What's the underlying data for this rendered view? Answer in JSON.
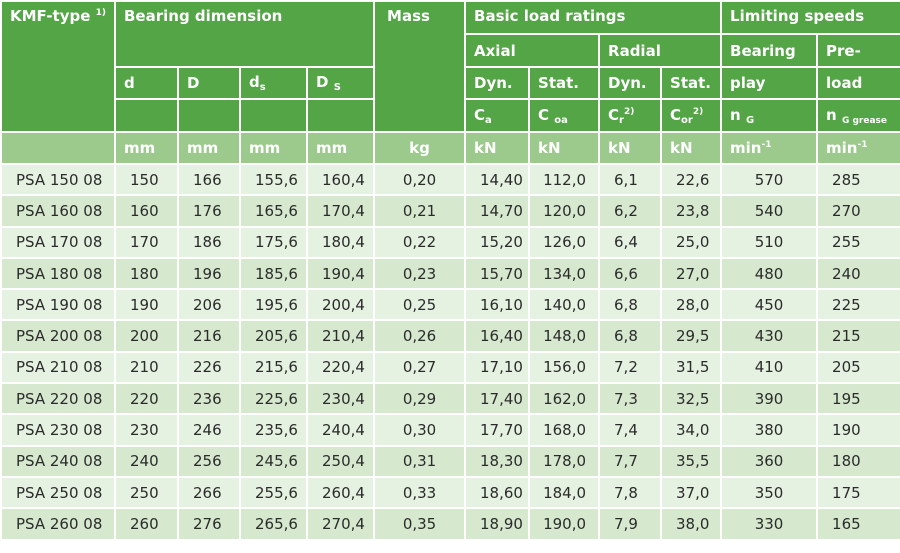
{
  "header": {
    "type_label": "KMF-type",
    "type_note": "1)",
    "bearing_dimension": "Bearing dimension",
    "mass": "Mass",
    "basic_load_ratings": "Basic load ratings",
    "limiting_speeds": "Limiting speeds",
    "axial": "Axial",
    "radial": "Radial",
    "bearing": "Bearing",
    "play": "play",
    "pre": "Pre-",
    "load": "load",
    "d": "d",
    "D": "D",
    "ds_main": "d",
    "ds_sub": "s",
    "DS_main": "D",
    "DS_sub": "S",
    "dyn1": "Dyn.",
    "stat1": "Stat.",
    "dyn2": "Dyn.",
    "stat2": "Stat.",
    "ca_main": "C",
    "ca_sub": "a",
    "coa_main": "C",
    "coa_sub": "oa",
    "cr_main": "C",
    "cr_sub": "r",
    "cr_note": "2)",
    "cor_main": "C",
    "cor_sub": "or",
    "cor_note": "2)",
    "ng_main": "n",
    "ng_sub": "G",
    "ngg_main": "n",
    "ngg_sub": "G grease",
    "units": {
      "d": "mm",
      "D": "mm",
      "ds": "mm",
      "DS": "mm",
      "mass": "kg",
      "ca": "kN",
      "coa": "kN",
      "cr": "kN",
      "cor": "kN",
      "speed1": "min",
      "speed1_exp": "-1",
      "speed2": "min",
      "speed2_exp": "-1"
    }
  },
  "rows": [
    {
      "type": "PSA 150 08",
      "d": "150",
      "D": "166",
      "ds": "155,6",
      "DS": "160,4",
      "mass": "0,20",
      "ca": "14,40",
      "coa": "112,0",
      "cr": "6,1",
      "cor": "22,6",
      "ng": "570",
      "ngg": "285"
    },
    {
      "type": "PSA 160 08",
      "d": "160",
      "D": "176",
      "ds": "165,6",
      "DS": "170,4",
      "mass": "0,21",
      "ca": "14,70",
      "coa": "120,0",
      "cr": "6,2",
      "cor": "23,8",
      "ng": "540",
      "ngg": "270"
    },
    {
      "type": "PSA 170 08",
      "d": "170",
      "D": "186",
      "ds": "175,6",
      "DS": "180,4",
      "mass": "0,22",
      "ca": "15,20",
      "coa": "126,0",
      "cr": "6,4",
      "cor": "25,0",
      "ng": "510",
      "ngg": "255"
    },
    {
      "type": "PSA 180 08",
      "d": "180",
      "D": "196",
      "ds": "185,6",
      "DS": "190,4",
      "mass": "0,23",
      "ca": "15,70",
      "coa": "134,0",
      "cr": "6,6",
      "cor": "27,0",
      "ng": "480",
      "ngg": "240"
    },
    {
      "type": "PSA 190 08",
      "d": "190",
      "D": "206",
      "ds": "195,6",
      "DS": "200,4",
      "mass": "0,25",
      "ca": "16,10",
      "coa": "140,0",
      "cr": "6,8",
      "cor": "28,0",
      "ng": "450",
      "ngg": "225"
    },
    {
      "type": "PSA 200 08",
      "d": "200",
      "D": "216",
      "ds": "205,6",
      "DS": "210,4",
      "mass": "0,26",
      "ca": "16,40",
      "coa": "148,0",
      "cr": "6,8",
      "cor": "29,5",
      "ng": "430",
      "ngg": "215"
    },
    {
      "type": "PSA 210 08",
      "d": "210",
      "D": "226",
      "ds": "215,6",
      "DS": "220,4",
      "mass": "0,27",
      "ca": "17,10",
      "coa": "156,0",
      "cr": "7,2",
      "cor": "31,5",
      "ng": "410",
      "ngg": "205"
    },
    {
      "type": "PSA 220 08",
      "d": "220",
      "D": "236",
      "ds": "225,6",
      "DS": "230,4",
      "mass": "0,29",
      "ca": "17,40",
      "coa": "162,0",
      "cr": "7,3",
      "cor": "32,5",
      "ng": "390",
      "ngg": "195"
    },
    {
      "type": "PSA 230 08",
      "d": "230",
      "D": "246",
      "ds": "235,6",
      "DS": "240,4",
      "mass": "0,30",
      "ca": "17,70",
      "coa": "168,0",
      "cr": "7,4",
      "cor": "34,0",
      "ng": "380",
      "ngg": "190"
    },
    {
      "type": "PSA 240 08",
      "d": "240",
      "D": "256",
      "ds": "245,6",
      "DS": "250,4",
      "mass": "0,31",
      "ca": "18,30",
      "coa": "178,0",
      "cr": "7,7",
      "cor": "35,5",
      "ng": "360",
      "ngg": "180"
    },
    {
      "type": "PSA 250 08",
      "d": "250",
      "D": "266",
      "ds": "255,6",
      "DS": "260,4",
      "mass": "0,33",
      "ca": "18,60",
      "coa": "184,0",
      "cr": "7,8",
      "cor": "37,0",
      "ng": "350",
      "ngg": "175"
    },
    {
      "type": "PSA 260 08",
      "d": "260",
      "D": "276",
      "ds": "265,6",
      "DS": "270,4",
      "mass": "0,35",
      "ca": "18,90",
      "coa": "190,0",
      "cr": "7,9",
      "cor": "38,0",
      "ng": "330",
      "ngg": "165"
    }
  ]
}
